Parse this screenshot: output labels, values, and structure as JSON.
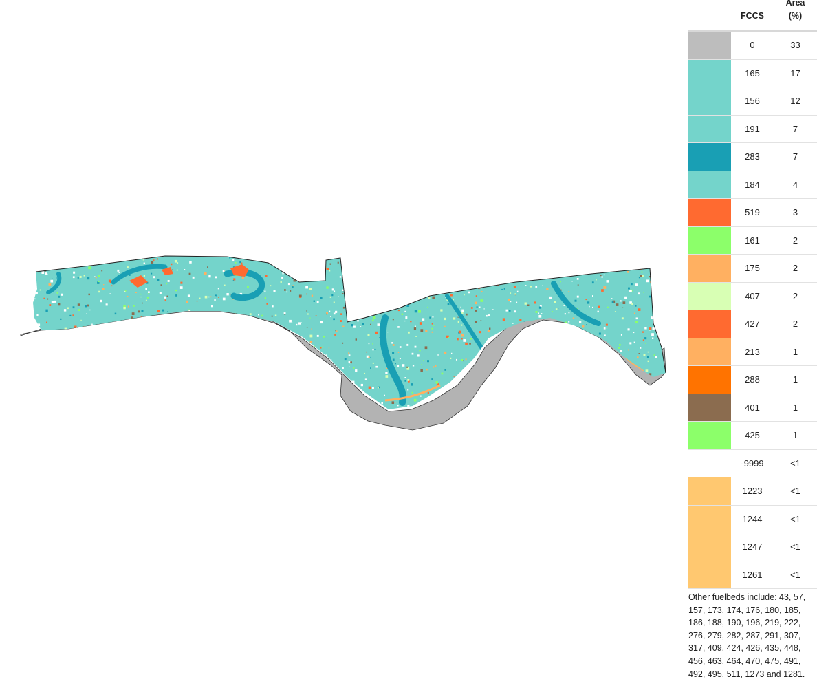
{
  "legend": {
    "header_code": "FCCS",
    "header_area_line1": "Area",
    "header_area_line2": "(%)",
    "rows": [
      {
        "code": "0",
        "area": "33",
        "color": "#bdbdbd"
      },
      {
        "code": "165",
        "area": "17",
        "color": "#74d4cb"
      },
      {
        "code": "156",
        "area": "12",
        "color": "#74d4cb"
      },
      {
        "code": "191",
        "area": "7",
        "color": "#74d4cb"
      },
      {
        "code": "283",
        "area": "7",
        "color": "#199fb4"
      },
      {
        "code": "184",
        "area": "4",
        "color": "#74d4cb"
      },
      {
        "code": "519",
        "area": "3",
        "color": "#ff6a30"
      },
      {
        "code": "161",
        "area": "2",
        "color": "#8cff6a"
      },
      {
        "code": "175",
        "area": "2",
        "color": "#ffb061"
      },
      {
        "code": "407",
        "area": "2",
        "color": "#d8ffb4"
      },
      {
        "code": "427",
        "area": "2",
        "color": "#ff6a30"
      },
      {
        "code": "213",
        "area": "1",
        "color": "#ffb061"
      },
      {
        "code": "288",
        "area": "1",
        "color": "#ff7300"
      },
      {
        "code": "401",
        "area": "1",
        "color": "#8b6c4f"
      },
      {
        "code": "425",
        "area": "1",
        "color": "#8cff6a"
      },
      {
        "code": "-9999",
        "area": "<1",
        "color": "#ffffff"
      },
      {
        "code": "1223",
        "area": "<1",
        "color": "#ffc870"
      },
      {
        "code": "1244",
        "area": "<1",
        "color": "#ffc870"
      },
      {
        "code": "1247",
        "area": "<1",
        "color": "#ffc870"
      },
      {
        "code": "1261",
        "area": "<1",
        "color": "#ffc870"
      }
    ],
    "note": "Other fuelbeds include: 43, 57, 157, 173, 174, 176, 180, 185, 186, 188, 190, 196, 219, 222, 276, 279, 282, 287, 291, 307, 317, 409, 424, 426, 435, 448, 456, 463, 464, 470, 475, 491, 492, 495, 511, 1273 and 1281."
  },
  "map": {
    "colors": {
      "water": "#b3b3b3",
      "forest": "#74d4cb",
      "marsh": "#199fb4",
      "shrub": "#ff6a30",
      "grass": "#8cff6a",
      "sand": "#ffb061",
      "pale": "#d8ffb4",
      "brown": "#8b6c4f",
      "white": "#ffffff"
    }
  }
}
